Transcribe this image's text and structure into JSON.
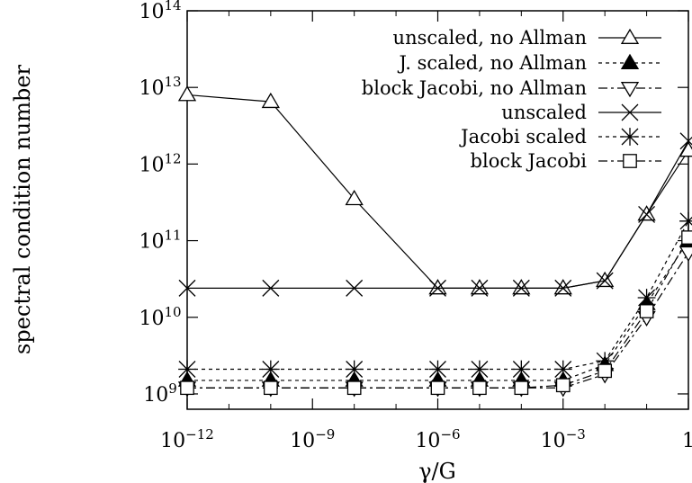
{
  "chart_data": {
    "type": "line",
    "xlabel": "γ/G",
    "ylabel": "spectral condition number",
    "xscale": "log",
    "yscale": "log",
    "xlim_log10": [
      -12,
      0
    ],
    "ylim_log10": [
      8.8,
      14
    ],
    "grid": false,
    "legend_position": "top-right",
    "x_ticks": [
      {
        "exp": -12,
        "base": "10",
        "sup": "−12"
      },
      {
        "exp": -9,
        "base": "10",
        "sup": "−9"
      },
      {
        "exp": -6,
        "base": "10",
        "sup": "−6"
      },
      {
        "exp": -3,
        "base": "10",
        "sup": "−3"
      },
      {
        "exp": 0,
        "base": "1",
        "sup": ""
      }
    ],
    "y_ticks": [
      {
        "exp": 9,
        "base": "10",
        "sup": "9"
      },
      {
        "exp": 10,
        "base": "10",
        "sup": "10"
      },
      {
        "exp": 11,
        "base": "10",
        "sup": "11"
      },
      {
        "exp": 12,
        "base": "10",
        "sup": "12"
      },
      {
        "exp": 13,
        "base": "10",
        "sup": "13"
      },
      {
        "exp": 14,
        "base": "10",
        "sup": "14"
      }
    ],
    "x_log10": [
      -12,
      -10,
      -8,
      -6,
      -5,
      -4,
      -3,
      -2,
      -1,
      0
    ],
    "series": [
      {
        "name": "unscaled, no Allman",
        "marker": "triangle-up",
        "dash": "solid",
        "y": [
          8000000000000.0,
          6500000000000.0,
          350000000000.0,
          24000000000.0,
          24000000000.0,
          24000000000.0,
          24000000000.0,
          30000000000.0,
          220000000000.0,
          1500000000000.0
        ]
      },
      {
        "name": "J. scaled, no Allman",
        "marker": "filled-triangle-up",
        "dash": "dotted",
        "y": [
          1500000000.0,
          1500000000.0,
          1500000000.0,
          1500000000.0,
          1500000000.0,
          1500000000.0,
          1500000000.0,
          2400000000.0,
          15000000000.0,
          100000000000.0
        ]
      },
      {
        "name": "block Jacobi, no Allman",
        "marker": "triangle-down",
        "dash": "dashdot",
        "y": [
          1200000000.0,
          1200000000.0,
          1200000000.0,
          1200000000.0,
          1200000000.0,
          1200000000.0,
          1200000000.0,
          1800000000.0,
          10000000000.0,
          70000000000.0
        ]
      },
      {
        "name": "unscaled",
        "marker": "x",
        "dash": "solid",
        "y": [
          24000000000.0,
          24000000000.0,
          24000000000.0,
          24000000000.0,
          24000000000.0,
          24000000000.0,
          24000000000.0,
          30000000000.0,
          220000000000.0,
          2000000000000.0
        ]
      },
      {
        "name": "Jacobi scaled",
        "marker": "star",
        "dash": "dotted",
        "y": [
          2100000000.0,
          2100000000.0,
          2100000000.0,
          2100000000.0,
          2100000000.0,
          2100000000.0,
          2100000000.0,
          2700000000.0,
          18000000000.0,
          180000000000.0
        ]
      },
      {
        "name": "block Jacobi",
        "marker": "square",
        "dash": "dashdot",
        "y": [
          1200000000.0,
          1200000000.0,
          1200000000.0,
          1200000000.0,
          1200000000.0,
          1200000000.0,
          1300000000.0,
          2000000000.0,
          12000000000.0,
          110000000000.0
        ]
      }
    ]
  }
}
